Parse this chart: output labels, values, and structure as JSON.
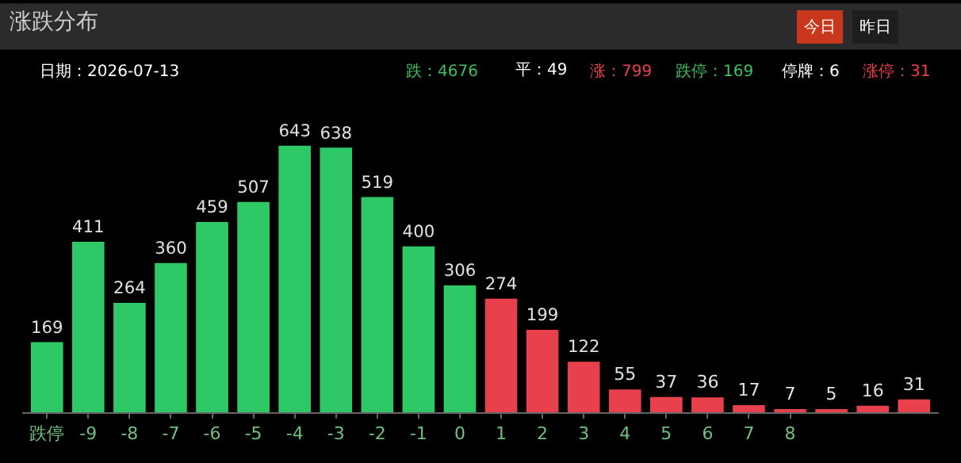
{
  "chart_data": {
    "type": "bar",
    "title": "涨跌分布",
    "categories": [
      "跌停",
      "-9",
      "-8",
      "-7",
      "-6",
      "-5",
      "-4",
      "-3",
      "-2",
      "-1",
      "0",
      "1",
      "2",
      "3",
      "4",
      "5",
      "6",
      "7",
      "8",
      null,
      null,
      null
    ],
    "values": [
      169,
      411,
      264,
      360,
      459,
      507,
      643,
      638,
      519,
      400,
      306,
      274,
      199,
      122,
      55,
      37,
      36,
      17,
      7,
      5,
      16,
      31
    ],
    "colors": [
      "#2ec866",
      "#2ec866",
      "#2ec866",
      "#2ec866",
      "#2ec866",
      "#2ec866",
      "#2ec866",
      "#2ec866",
      "#2ec866",
      "#2ec866",
      "#2ec866",
      "#e8404c",
      "#e8404c",
      "#e8404c",
      "#e8404c",
      "#e8404c",
      "#e8404c",
      "#e8404c",
      "#e8404c",
      "#e8404c",
      "#e8404c",
      "#e8404c"
    ],
    "data_labels": true,
    "grid": false,
    "legend": false,
    "annotations": [
      "今日",
      "昨日",
      "日期：2026-07-13",
      "跌：4676",
      "平：49",
      "涨：799",
      "跌停：169",
      "停牌：6",
      "涨停：31"
    ]
  }
}
